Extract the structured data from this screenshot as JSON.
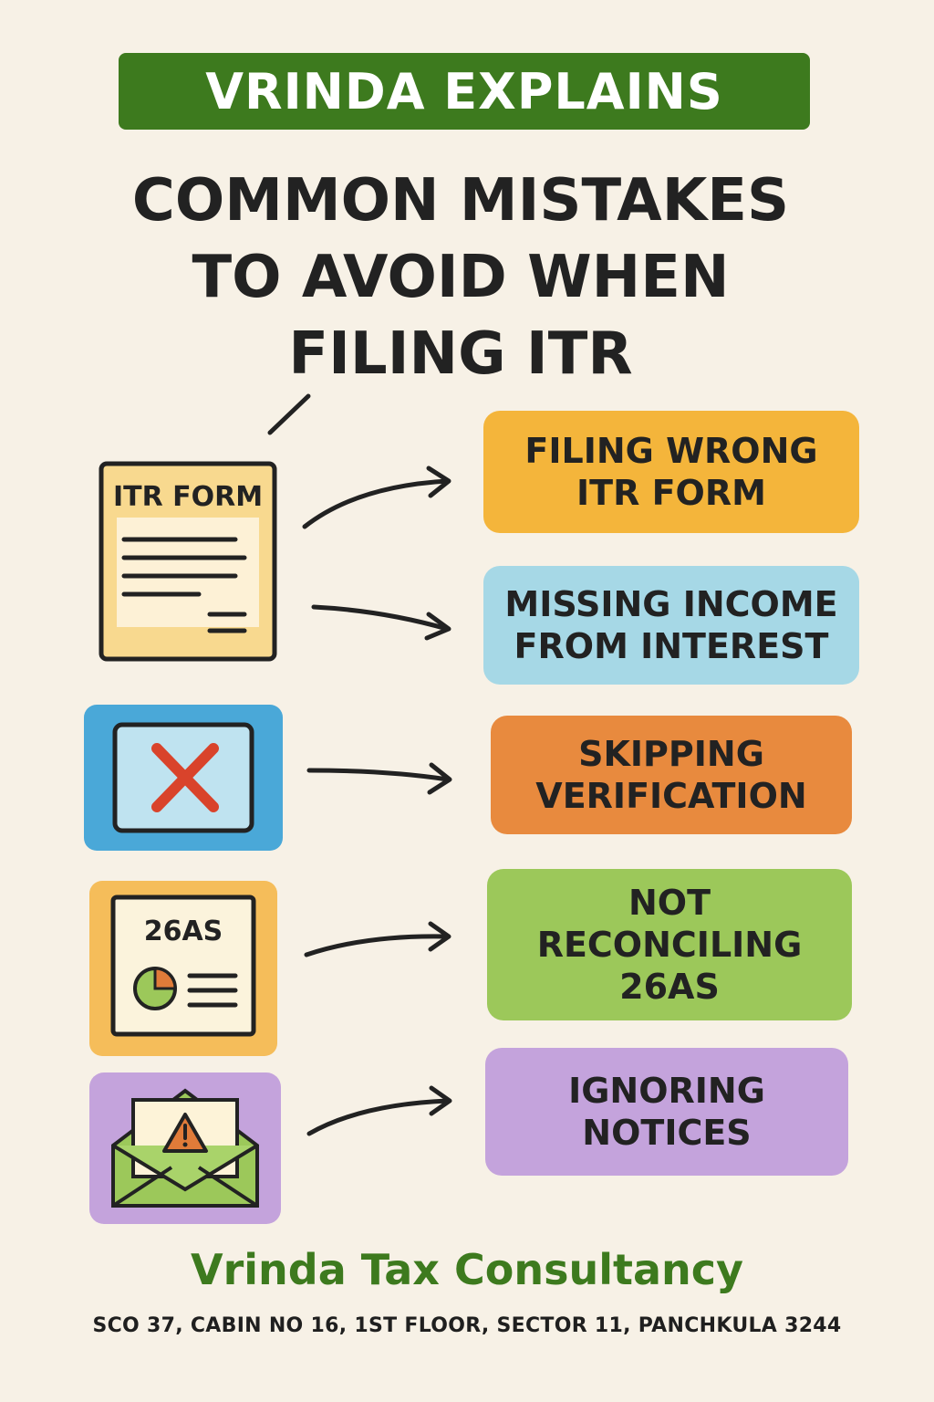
{
  "header": {
    "banner_text": "VRINDA EXPLAINS",
    "title_lines": [
      "COMMON MISTAKES",
      "TO AVOID WHEN",
      "FILING ITR"
    ]
  },
  "icons": {
    "itr_form": {
      "label": "ITR FORM",
      "icon": "document-icon"
    },
    "verification": {
      "icon": "cross-icon"
    },
    "form_26as": {
      "label": "26AS",
      "icon": "pie-chart-document-icon"
    },
    "notices": {
      "icon": "warning-envelope-icon"
    }
  },
  "mistakes": [
    {
      "text": "FILING WRONG\nITR FORM",
      "color": "#f4b53b"
    },
    {
      "text": "MISSING INCOME\nFROM INTEREST",
      "color": "#a6d8e6"
    },
    {
      "text": "SKIPPING\nVERIFICATION",
      "color": "#e88a3e"
    },
    {
      "text": "NOT\nRECONCILING\n26AS",
      "color": "#9cc85a"
    },
    {
      "text": "IGNORING\nNOTICES",
      "color": "#c4a3dc"
    }
  ],
  "footer": {
    "company": "Vrinda Tax Consultancy",
    "address": "SCO 37, CABIN NO 16, 1ST FLOOR, SECTOR 11, PANCHKULA 3244"
  }
}
